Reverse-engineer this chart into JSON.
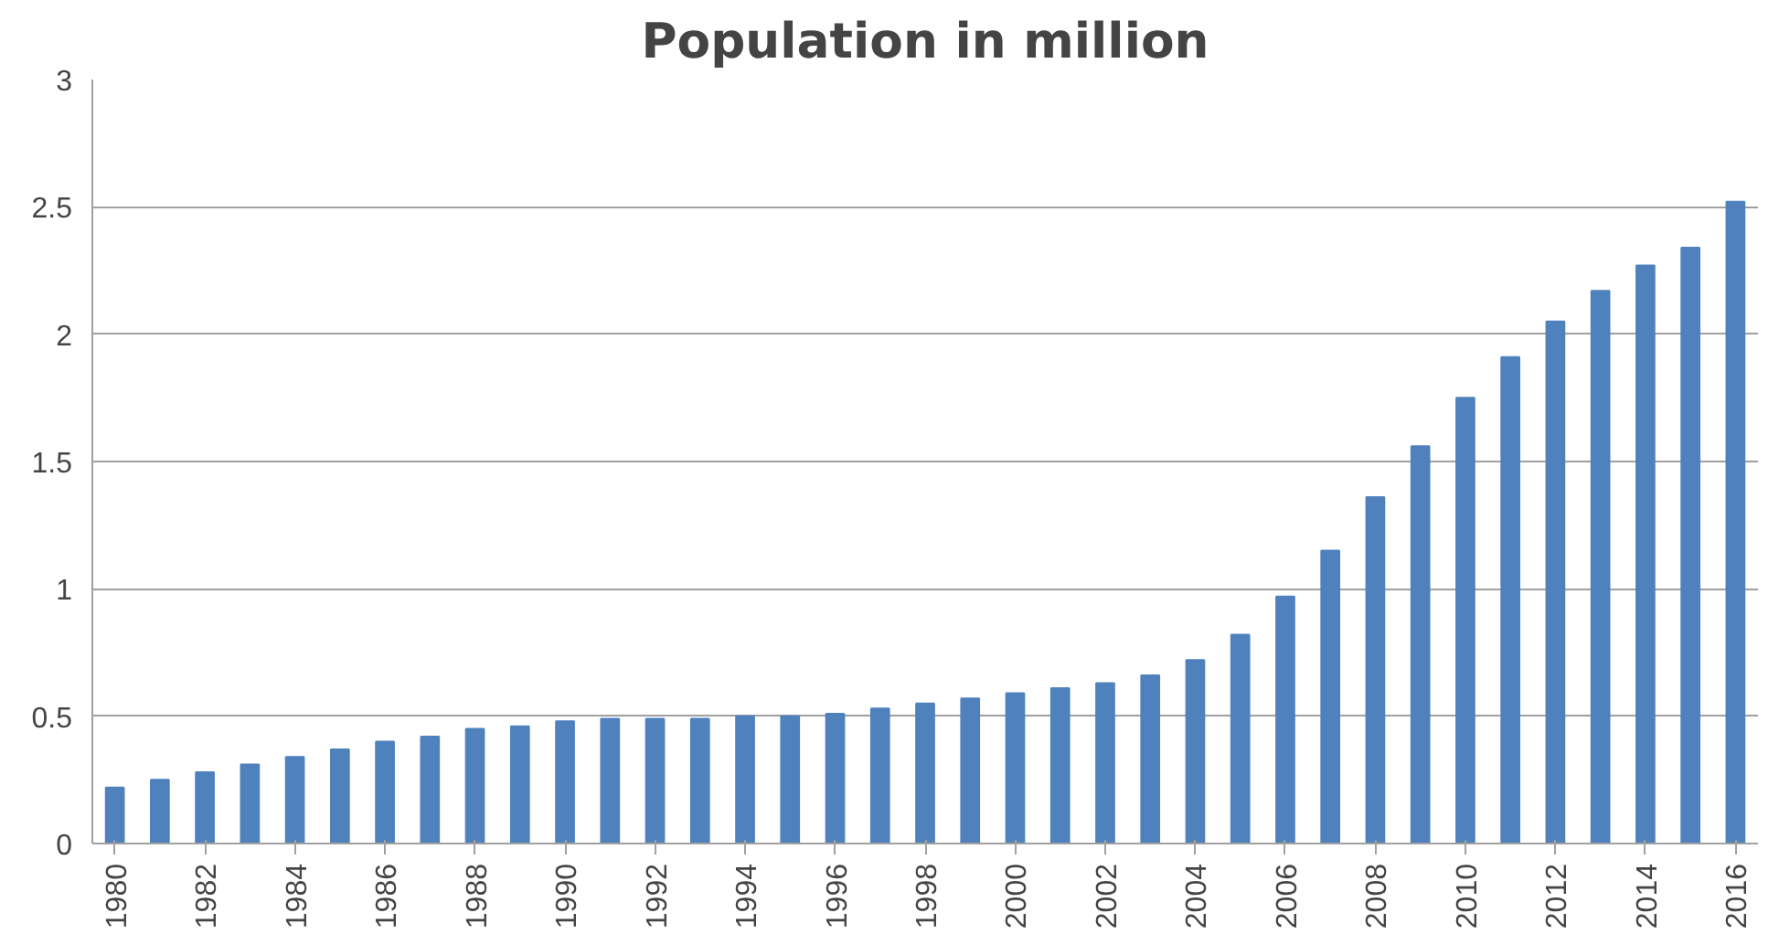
{
  "chart_data": {
    "type": "bar",
    "title": "Population in million",
    "categories": [
      "1980",
      null,
      "1982",
      null,
      "1984",
      null,
      "1986",
      null,
      "1988",
      null,
      "1990",
      null,
      "1992",
      null,
      "1994",
      null,
      "1996",
      null,
      "1998",
      null,
      "2000",
      null,
      "2002",
      null,
      "2004",
      null,
      "2006",
      null,
      "2008",
      null,
      "2010",
      null,
      "2012",
      null,
      "2014",
      null,
      "2016"
    ],
    "values": [
      0.22,
      0.25,
      0.28,
      0.31,
      0.34,
      0.37,
      0.4,
      0.42,
      0.45,
      0.46,
      0.48,
      0.49,
      0.49,
      0.49,
      0.5,
      0.5,
      0.51,
      0.53,
      0.55,
      0.57,
      0.59,
      0.61,
      0.63,
      0.66,
      0.72,
      0.82,
      0.97,
      1.15,
      1.36,
      1.56,
      1.75,
      1.91,
      2.05,
      2.17,
      2.27,
      2.34,
      2.52
    ],
    "color": "#4f81bd",
    "ylim": [
      0,
      3
    ],
    "yticks": [
      0,
      0.5,
      1,
      1.5,
      2,
      2.5,
      3
    ],
    "grid": "y"
  }
}
